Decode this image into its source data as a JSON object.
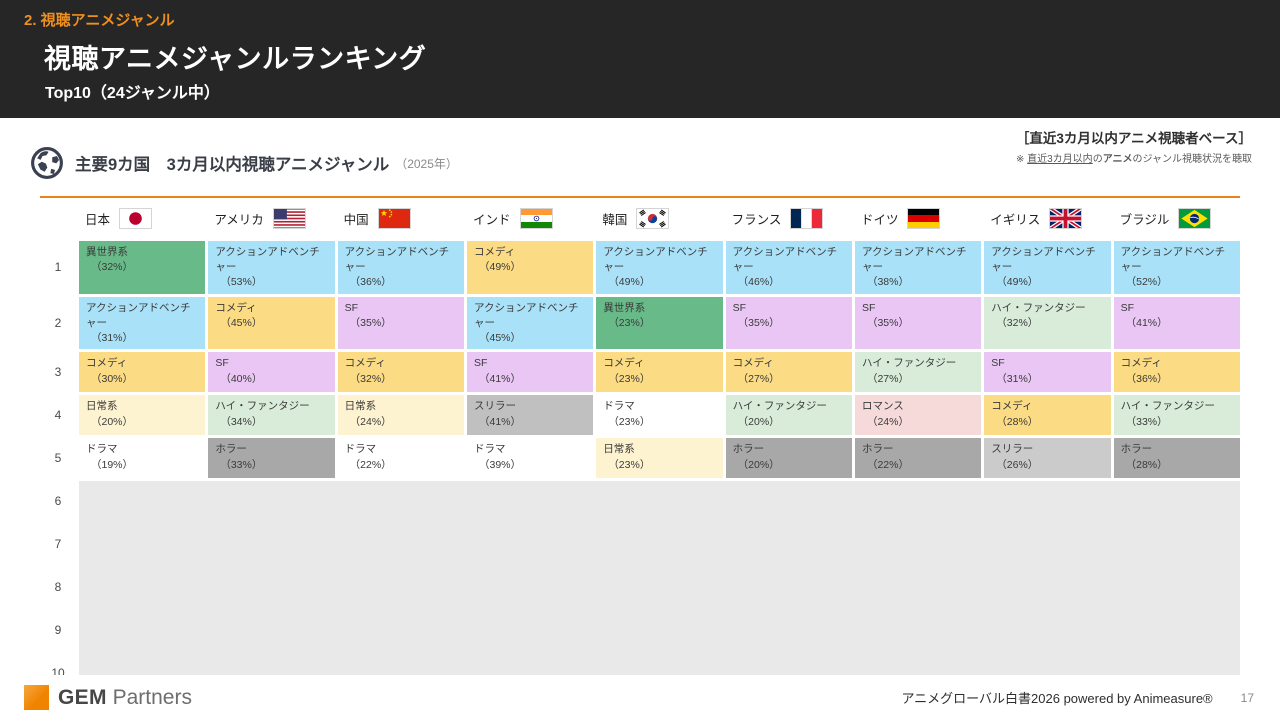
{
  "header": {
    "kicker": "2. 視聴アニメジャンル",
    "title": "視聴アニメジャンルランキング",
    "subtitle": "Top10（24ジャンル中）"
  },
  "note": {
    "base": "［直近3カ月以内アニメ視聴者ベース］",
    "detail_prefix": "※ ",
    "detail_underline": "直近3カ月以内",
    "detail_mid": "の",
    "detail_bold": "アニメ",
    "detail_suffix": "のジャンル視聴状況を聴取"
  },
  "section": {
    "title": "主要9カ国　3カ月以内視聴アニメジャンル",
    "year": "（2025年）"
  },
  "chart_data": {
    "type": "table",
    "title": "主要9カ国 3カ月以内視聴アニメジャンル（2025年） Top10（24ジャンル中）",
    "countries": [
      {
        "label": "日本",
        "flag": "jp"
      },
      {
        "label": "アメリカ",
        "flag": "us"
      },
      {
        "label": "中国",
        "flag": "cn"
      },
      {
        "label": "インド",
        "flag": "in"
      },
      {
        "label": "韓国",
        "flag": "kr"
      },
      {
        "label": "フランス",
        "flag": "fr"
      },
      {
        "label": "ドイツ",
        "flag": "de"
      },
      {
        "label": "イギリス",
        "flag": "gb"
      },
      {
        "label": "ブラジル",
        "flag": "br"
      }
    ],
    "colors": {
      "green": "#68bb88",
      "blue": "#a9e2f8",
      "yellow": "#fbdb84",
      "purple": "#e9c6f4",
      "cream": "#fdf3d0",
      "mint": "#d8ecd9",
      "pink": "#f6d9d9",
      "gray": "#c0c0c0",
      "gray2": "#cbcbcb",
      "darkgray": "#a8a8a8",
      "white": "#ffffff",
      "sliver": "#bdbdbd"
    },
    "rows": [
      {
        "rank": "1",
        "cells": [
          {
            "genre": "異世界系",
            "pct": "（32%）",
            "color": "green"
          },
          {
            "genre": "アクションアドベンチャー",
            "pct": "（53%）",
            "color": "blue"
          },
          {
            "genre": "アクションアドベンチャー",
            "pct": "（36%）",
            "color": "blue"
          },
          {
            "genre": "コメディ",
            "pct": "（49%）",
            "color": "yellow"
          },
          {
            "genre": "アクションアドベンチャー",
            "pct": "（49%）",
            "color": "blue"
          },
          {
            "genre": "アクションアドベンチャー",
            "pct": "（46%）",
            "color": "blue"
          },
          {
            "genre": "アクションアドベンチャー",
            "pct": "（38%）",
            "color": "blue"
          },
          {
            "genre": "アクションアドベンチャー",
            "pct": "（49%）",
            "color": "blue"
          },
          {
            "genre": "アクションアドベンチャー",
            "pct": "（52%）",
            "color": "blue"
          }
        ]
      },
      {
        "rank": "2",
        "cells": [
          {
            "genre": "アクションアドベンチャー",
            "pct": "（31%）",
            "color": "blue"
          },
          {
            "genre": "コメディ",
            "pct": "（45%）",
            "color": "yellow"
          },
          {
            "genre": "SF",
            "pct": "（35%）",
            "color": "purple"
          },
          {
            "genre": "アクションアドベンチャー",
            "pct": "（45%）",
            "color": "blue"
          },
          {
            "genre": "異世界系",
            "pct": "（23%）",
            "color": "green"
          },
          {
            "genre": "SF",
            "pct": "（35%）",
            "color": "purple"
          },
          {
            "genre": "SF",
            "pct": "（35%）",
            "color": "purple"
          },
          {
            "genre": "ハイ・ファンタジー",
            "pct": "（32%）",
            "color": "mint"
          },
          {
            "genre": "SF",
            "pct": "（41%）",
            "color": "purple"
          }
        ]
      },
      {
        "rank": "3",
        "cells": [
          {
            "genre": "コメディ",
            "pct": "（30%）",
            "color": "yellow"
          },
          {
            "genre": "SF",
            "pct": "（40%）",
            "color": "purple"
          },
          {
            "genre": "コメディ",
            "pct": "（32%）",
            "color": "yellow"
          },
          {
            "genre": "SF",
            "pct": "（41%）",
            "color": "purple"
          },
          {
            "genre": "コメディ",
            "pct": "（23%）",
            "color": "yellow"
          },
          {
            "genre": "コメディ",
            "pct": "（27%）",
            "color": "yellow"
          },
          {
            "genre": "ハイ・ファンタジー",
            "pct": "（27%）",
            "color": "mint"
          },
          {
            "genre": "SF",
            "pct": "（31%）",
            "color": "purple"
          },
          {
            "genre": "コメディ",
            "pct": "（36%）",
            "color": "yellow"
          }
        ]
      },
      {
        "rank": "4",
        "cells": [
          {
            "genre": "日常系",
            "pct": "（20%）",
            "color": "cream"
          },
          {
            "genre": "ハイ・ファンタジー",
            "pct": "（34%）",
            "color": "mint"
          },
          {
            "genre": "日常系",
            "pct": "（24%）",
            "color": "cream"
          },
          {
            "genre": "スリラー",
            "pct": "（41%）",
            "color": "gray"
          },
          {
            "genre": "ドラマ",
            "pct": "（23%）",
            "color": "white"
          },
          {
            "genre": "ハイ・ファンタジー",
            "pct": "（20%）",
            "color": "mint"
          },
          {
            "genre": "ロマンス",
            "pct": "（24%）",
            "color": "pink"
          },
          {
            "genre": "コメディ",
            "pct": "（28%）",
            "color": "yellow"
          },
          {
            "genre": "ハイ・ファンタジー",
            "pct": "（33%）",
            "color": "mint"
          }
        ]
      },
      {
        "rank": "5",
        "cells": [
          {
            "genre": "ドラマ",
            "pct": "（19%）",
            "color": "white"
          },
          {
            "genre": "ホラー",
            "pct": "（33%）",
            "color": "darkgray"
          },
          {
            "genre": "ドラマ",
            "pct": "（22%）",
            "color": "white"
          },
          {
            "genre": "ドラマ",
            "pct": "（39%）",
            "color": "white"
          },
          {
            "genre": "日常系",
            "pct": "（23%）",
            "color": "cream"
          },
          {
            "genre": "ホラー",
            "pct": "（20%）",
            "color": "darkgray"
          },
          {
            "genre": "ホラー",
            "pct": "（22%）",
            "color": "darkgray"
          },
          {
            "genre": "スリラー",
            "pct": "（26%）",
            "color": "gray2"
          },
          {
            "genre": "ホラー",
            "pct": "（28%）",
            "color": "darkgray"
          }
        ]
      }
    ],
    "masked_ranks": [
      "6",
      "7",
      "8",
      "9",
      "10"
    ],
    "slivers": [
      {
        "col": 1,
        "color": "green"
      },
      {
        "col": 3,
        "color": "cream"
      },
      {
        "col": 4,
        "color": "mint"
      },
      {
        "col": 5,
        "color": "green"
      },
      {
        "col": 6,
        "color": "sliver"
      },
      {
        "col": 8,
        "color": "sliver"
      }
    ]
  },
  "footer": {
    "logo_gem": "GEM",
    "logo_partners": "Partners",
    "credit": "アニメグローバル白書2026 powered by Animeasure®",
    "page": "17"
  }
}
